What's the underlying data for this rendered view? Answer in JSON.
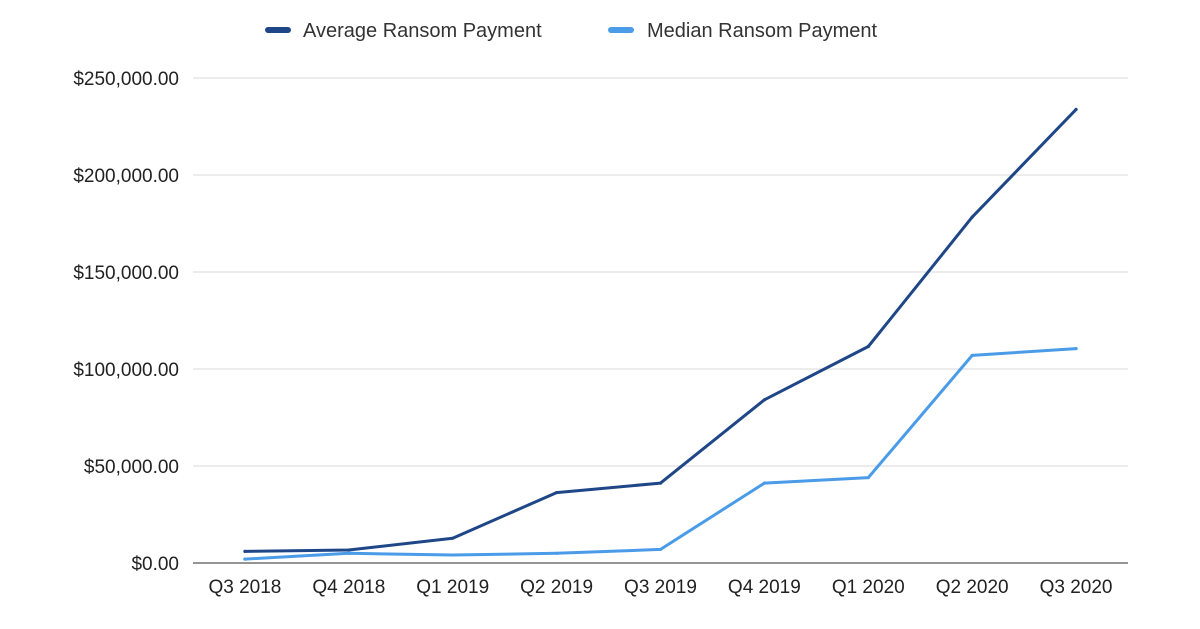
{
  "chart_data": {
    "type": "line",
    "title": "",
    "xlabel": "",
    "ylabel": "",
    "categories": [
      "Q3 2018",
      "Q4 2018",
      "Q1 2019",
      "Q2 2019",
      "Q3 2019",
      "Q4 2019",
      "Q1 2020",
      "Q2 2020",
      "Q3 2020"
    ],
    "series": [
      {
        "name": "Average Ransom Payment",
        "color": "#1f4788",
        "values": [
          6000,
          6700,
          12800,
          36300,
          41200,
          84100,
          111600,
          178300,
          233800
        ]
      },
      {
        "name": "Median Ransom Payment",
        "color": "#4a9be8",
        "values": [
          2000,
          5000,
          4100,
          5000,
          7000,
          41200,
          44000,
          107000,
          110500
        ]
      }
    ],
    "ylim": [
      0,
      250000
    ],
    "yticks": [
      0,
      50000,
      100000,
      150000,
      200000,
      250000
    ],
    "ytick_labels": [
      "$0.00",
      "$50,000.00",
      "$100,000.00",
      "$150,000.00",
      "$200,000.00",
      "$250,000.00"
    ],
    "grid": true,
    "legend_position": "top-center"
  }
}
